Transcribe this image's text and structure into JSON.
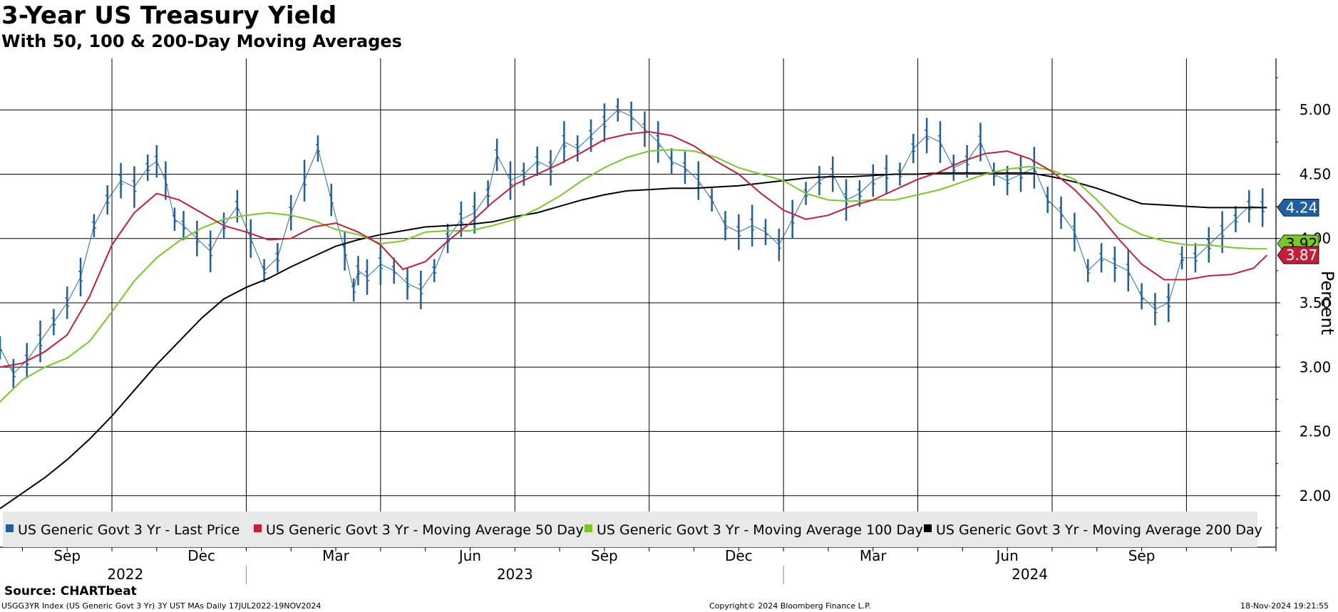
{
  "header": {
    "title": "3-Year US Treasury Yield",
    "subtitle": "With 50, 100 & 200-Day Moving Averages"
  },
  "footer": {
    "source": "Source: CHARTbeat",
    "index_info": "USGG3YR Index (US Generic Govt 3 Yr) 3Y UST MAs  Daily 17JUL2022-19NOV2024",
    "copyright": "Copyright© 2024 Bloomberg Finance L.P.",
    "timestamp": "18-Nov-2024 19:21:55"
  },
  "chart_data": {
    "type": "line",
    "title": "3-Year US Treasury Yield",
    "subtitle": "With 50, 100 & 200-Day Moving Averages",
    "ylabel": "Percent",
    "xlabel": "",
    "ylim": [
      1.6,
      5.4
    ],
    "yticks": [
      2.0,
      2.5,
      3.0,
      3.5,
      4.0,
      4.5,
      5.0
    ],
    "ytick_labels": [
      "2.00",
      "2.50",
      "3.00",
      "3.50",
      "4.00",
      "4.50",
      "5.00"
    ],
    "x_index_range": [
      0,
      28.5
    ],
    "month_ticks": [
      {
        "label": "Sep",
        "t": 1.5
      },
      {
        "label": "Dec",
        "t": 4.5
      },
      {
        "label": "Mar",
        "t": 7.5
      },
      {
        "label": "Jun",
        "t": 10.5
      },
      {
        "label": "Sep",
        "t": 13.5
      },
      {
        "label": "Dec",
        "t": 16.5
      },
      {
        "label": "Mar",
        "t": 19.5
      },
      {
        "label": "Jun",
        "t": 22.5
      },
      {
        "label": "Sep",
        "t": 25.5
      }
    ],
    "year_labels": [
      {
        "label": "2022",
        "t": 2.8
      },
      {
        "label": "2023",
        "t": 11.5
      },
      {
        "label": "2024",
        "t": 23.0
      }
    ],
    "year_dividers": [
      5.5,
      17.5
    ],
    "vertical_gridlines": [
      2.5,
      5.5,
      8.5,
      11.5,
      14.5,
      17.5,
      20.5,
      23.5,
      26.5
    ],
    "grid": true,
    "legend_position": "bottom",
    "series": [
      {
        "name": "US Generic Govt 3 Yr - Last Price",
        "style": "ohlc-bars",
        "color": "#1f5fa0",
        "last_value": "4.24",
        "t": [
          0,
          0.3,
          0.6,
          0.9,
          1.2,
          1.5,
          1.8,
          2.1,
          2.4,
          2.7,
          3.0,
          3.3,
          3.5,
          3.7,
          3.9,
          4.1,
          4.4,
          4.7,
          5.0,
          5.3,
          5.6,
          5.9,
          6.2,
          6.5,
          6.8,
          7.1,
          7.4,
          7.7,
          7.9,
          8.0,
          8.2,
          8.5,
          8.8,
          9.1,
          9.4,
          9.7,
          10.0,
          10.3,
          10.6,
          10.9,
          11.1,
          11.4,
          11.7,
          12.0,
          12.3,
          12.6,
          12.9,
          13.2,
          13.5,
          13.8,
          14.1,
          14.4,
          14.7,
          15.0,
          15.3,
          15.6,
          15.9,
          16.2,
          16.5,
          16.8,
          17.1,
          17.4,
          17.7,
          18.0,
          18.3,
          18.6,
          18.9,
          19.2,
          19.5,
          19.8,
          20.1,
          20.4,
          20.7,
          21.0,
          21.3,
          21.6,
          21.9,
          22.2,
          22.5,
          22.8,
          23.1,
          23.4,
          23.7,
          24.0,
          24.3,
          24.6,
          24.9,
          25.2,
          25.5,
          25.8,
          26.1,
          26.4,
          26.7,
          27.0,
          27.3,
          27.6,
          27.9,
          28.2
        ],
        "values": [
          3.15,
          2.95,
          3.05,
          3.2,
          3.35,
          3.5,
          3.7,
          4.1,
          4.3,
          4.45,
          4.4,
          4.55,
          4.6,
          4.45,
          4.15,
          4.1,
          4.0,
          3.9,
          4.1,
          4.25,
          4.0,
          3.75,
          3.85,
          4.2,
          4.45,
          4.7,
          4.3,
          3.9,
          3.6,
          3.75,
          3.7,
          3.8,
          3.75,
          3.65,
          3.6,
          3.75,
          4.0,
          4.15,
          4.2,
          4.35,
          4.65,
          4.45,
          4.5,
          4.6,
          4.55,
          4.75,
          4.7,
          4.8,
          4.9,
          5.0,
          4.95,
          4.85,
          4.75,
          4.6,
          4.55,
          4.45,
          4.3,
          4.1,
          4.05,
          4.1,
          4.05,
          3.95,
          4.15,
          4.35,
          4.45,
          4.5,
          4.3,
          4.35,
          4.45,
          4.5,
          4.5,
          4.7,
          4.8,
          4.75,
          4.55,
          4.6,
          4.75,
          4.5,
          4.45,
          4.5,
          4.55,
          4.3,
          4.2,
          4.05,
          3.75,
          3.85,
          3.8,
          3.75,
          3.55,
          3.45,
          3.5,
          3.85,
          3.85,
          3.95,
          4.05,
          4.15,
          4.25,
          4.24
        ]
      },
      {
        "name": "US Generic Govt 3 Yr - Moving Average 50 Day",
        "style": "line",
        "color": "#c41e3a",
        "last_value": "3.87",
        "t": [
          0,
          0.5,
          1.0,
          1.5,
          2.0,
          2.5,
          3.0,
          3.5,
          4.0,
          4.5,
          5.0,
          5.5,
          6.0,
          6.5,
          7.0,
          7.5,
          8.0,
          8.5,
          9.0,
          9.5,
          10.0,
          10.5,
          11.0,
          11.5,
          12.0,
          12.5,
          13.0,
          13.5,
          14.0,
          14.5,
          15.0,
          15.5,
          16.0,
          16.5,
          17.0,
          17.5,
          18.0,
          18.5,
          19.0,
          19.5,
          20.0,
          20.5,
          21.0,
          21.5,
          22.0,
          22.5,
          23.0,
          23.5,
          24.0,
          24.5,
          25.0,
          25.5,
          26.0,
          26.5,
          27.0,
          27.5,
          28.0,
          28.3
        ],
        "values": [
          3.0,
          3.03,
          3.12,
          3.25,
          3.55,
          3.95,
          4.2,
          4.35,
          4.3,
          4.2,
          4.1,
          4.05,
          3.99,
          4.0,
          4.09,
          4.12,
          4.05,
          3.95,
          3.76,
          3.82,
          3.98,
          4.12,
          4.28,
          4.42,
          4.5,
          4.58,
          4.67,
          4.77,
          4.81,
          4.83,
          4.8,
          4.72,
          4.6,
          4.5,
          4.35,
          4.22,
          4.15,
          4.18,
          4.25,
          4.3,
          4.38,
          4.46,
          4.52,
          4.6,
          4.66,
          4.68,
          4.62,
          4.52,
          4.38,
          4.2,
          3.99,
          3.8,
          3.68,
          3.68,
          3.71,
          3.72,
          3.77,
          3.87
        ]
      },
      {
        "name": "US Generic Govt 3 Yr - Moving Average 100 Day",
        "style": "line",
        "color": "#7ac828",
        "last_value": "3.92",
        "t": [
          0,
          0.5,
          1.0,
          1.5,
          2.0,
          2.5,
          3.0,
          3.5,
          4.0,
          4.5,
          5.0,
          5.5,
          6.0,
          6.5,
          7.0,
          7.5,
          8.0,
          8.5,
          9.0,
          9.5,
          10.0,
          10.5,
          11.0,
          11.5,
          12.0,
          12.5,
          13.0,
          13.5,
          14.0,
          14.5,
          15.0,
          15.5,
          16.0,
          16.5,
          17.0,
          17.5,
          18.0,
          18.5,
          19.0,
          19.5,
          20.0,
          20.5,
          21.0,
          21.5,
          22.0,
          22.5,
          23.0,
          23.5,
          24.0,
          24.5,
          25.0,
          25.5,
          26.0,
          26.5,
          27.0,
          27.5,
          28.0,
          28.3
        ],
        "values": [
          2.73,
          2.9,
          3.0,
          3.07,
          3.2,
          3.43,
          3.67,
          3.85,
          3.98,
          4.08,
          4.15,
          4.18,
          4.2,
          4.18,
          4.14,
          4.07,
          4.03,
          3.96,
          3.98,
          4.05,
          4.06,
          4.06,
          4.1,
          4.15,
          4.23,
          4.33,
          4.45,
          4.55,
          4.63,
          4.68,
          4.69,
          4.68,
          4.63,
          4.55,
          4.5,
          4.45,
          4.35,
          4.3,
          4.29,
          4.3,
          4.3,
          4.34,
          4.38,
          4.44,
          4.5,
          4.54,
          4.56,
          4.53,
          4.46,
          4.3,
          4.12,
          4.03,
          3.98,
          3.95,
          3.95,
          3.93,
          3.92,
          3.92
        ]
      },
      {
        "name": "US Generic Govt 3 Yr - Moving Average 200 Day",
        "style": "line",
        "color": "#000000",
        "last_value": "4.24",
        "t": [
          0,
          0.5,
          1.0,
          1.5,
          2.0,
          2.5,
          3.0,
          3.5,
          4.0,
          4.5,
          5.0,
          5.5,
          6.0,
          6.5,
          7.0,
          7.5,
          8.0,
          8.5,
          9.0,
          9.5,
          10.0,
          10.5,
          11.0,
          11.5,
          12.0,
          12.5,
          13.0,
          13.5,
          14.0,
          14.5,
          15.0,
          15.5,
          16.0,
          16.5,
          17.0,
          17.5,
          18.0,
          18.5,
          19.0,
          19.5,
          20.0,
          20.5,
          21.0,
          21.5,
          22.0,
          22.5,
          23.0,
          23.5,
          24.0,
          24.5,
          25.0,
          25.5,
          26.0,
          26.5,
          27.0,
          27.5,
          28.0,
          28.3
        ],
        "values": [
          1.9,
          2.02,
          2.14,
          2.28,
          2.44,
          2.62,
          2.82,
          3.02,
          3.2,
          3.38,
          3.53,
          3.62,
          3.69,
          3.78,
          3.86,
          3.94,
          3.99,
          4.03,
          4.06,
          4.09,
          4.1,
          4.11,
          4.13,
          4.17,
          4.2,
          4.25,
          4.3,
          4.34,
          4.37,
          4.38,
          4.39,
          4.39,
          4.4,
          4.41,
          4.43,
          4.45,
          4.47,
          4.48,
          4.48,
          4.49,
          4.5,
          4.5,
          4.51,
          4.51,
          4.51,
          4.51,
          4.51,
          4.48,
          4.44,
          4.39,
          4.33,
          4.27,
          4.26,
          4.25,
          4.24,
          4.24,
          4.24,
          4.24
        ]
      }
    ]
  }
}
